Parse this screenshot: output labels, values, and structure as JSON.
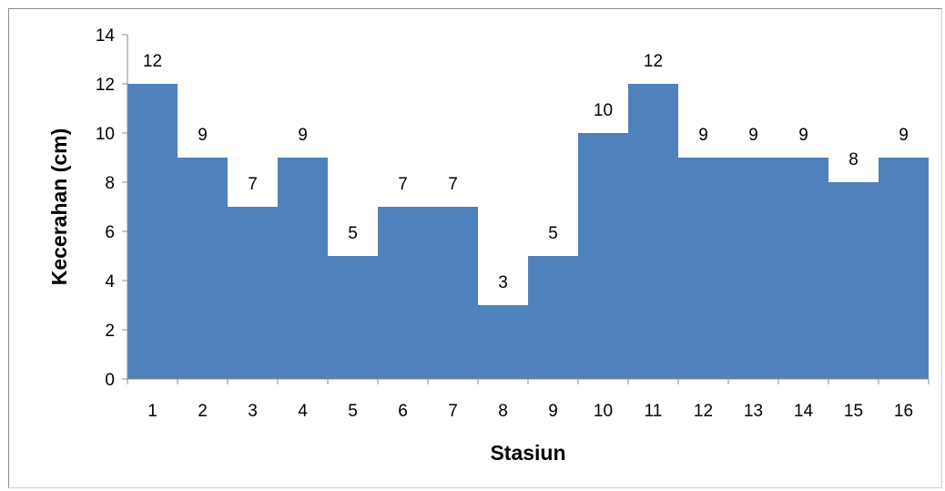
{
  "chart_data": {
    "type": "area",
    "categories": [
      "1",
      "2",
      "3",
      "4",
      "5",
      "6",
      "7",
      "8",
      "9",
      "10",
      "11",
      "12",
      "13",
      "14",
      "15",
      "16"
    ],
    "values": [
      12,
      9,
      7,
      9,
      5,
      7,
      7,
      3,
      5,
      10,
      12,
      9,
      9,
      9,
      8,
      9
    ],
    "data_labels": [
      "12",
      "9",
      "7",
      "9",
      "5",
      "7",
      "7",
      "3",
      "5",
      "10",
      "12",
      "9",
      "9",
      "9",
      "8",
      "9"
    ],
    "y_ticks": [
      "0",
      "2",
      "4",
      "6",
      "8",
      "10",
      "12",
      "14"
    ],
    "xlabel": "Stasiun",
    "ylabel": "Kecerahan (cm)",
    "ylim": [
      0,
      14
    ],
    "y_step": 2,
    "fill_color": "#4F81BD",
    "grid": false,
    "legend": "none"
  }
}
